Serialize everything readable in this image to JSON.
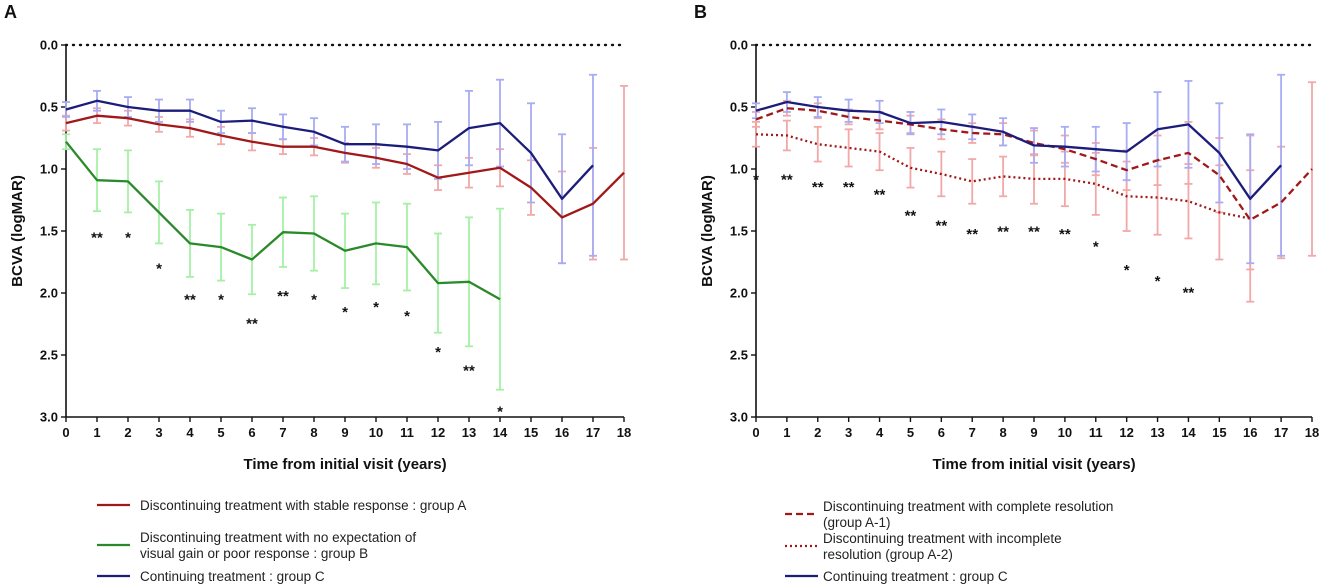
{
  "chart_data": [
    {
      "panel_label": "A",
      "type": "line",
      "xlabel": "Time from initial visit (years)",
      "ylabel": "BCVA (logMAR)",
      "ylim": [
        0.0,
        3.0
      ],
      "y_inverted": true,
      "x_ticks": [
        0,
        1,
        2,
        3,
        4,
        5,
        6,
        7,
        8,
        9,
        10,
        11,
        12,
        13,
        14,
        15,
        16,
        17,
        18
      ],
      "y_ticks": [
        "0.0",
        "0.5",
        "1.0",
        "1.5",
        "2.0",
        "2.5",
        "3.0"
      ],
      "reference_line": {
        "y": 0.0,
        "style": "dotted"
      },
      "series": [
        {
          "name": "Discontinuing treatment with stable response : group A",
          "color": "#a01818",
          "error_color": "#f2a8a8",
          "dash": "solid",
          "x": [
            0,
            1,
            2,
            3,
            4,
            5,
            6,
            7,
            8,
            9,
            10,
            11,
            12,
            13,
            14,
            15,
            16,
            17,
            18
          ],
          "y": [
            0.63,
            0.57,
            0.59,
            0.64,
            0.67,
            0.73,
            0.78,
            0.82,
            0.82,
            0.87,
            0.91,
            0.96,
            1.07,
            1.03,
            0.99,
            1.15,
            1.39,
            1.28,
            1.03
          ],
          "err": [
            0.06,
            0.06,
            0.06,
            0.06,
            0.07,
            0.07,
            0.07,
            0.06,
            0.07,
            0.08,
            0.08,
            0.08,
            0.1,
            0.12,
            0.15,
            0.22,
            0.37,
            0.45,
            0.7
          ]
        },
        {
          "name": "Discontinuing treatment with no expectation of visual gain or poor response : group B",
          "color": "#2a8a2a",
          "error_color": "#a6f0a6",
          "dash": "solid",
          "x": [
            0,
            1,
            2,
            3,
            4,
            5,
            6,
            7,
            8,
            9,
            10,
            11,
            12,
            13,
            14
          ],
          "y": [
            0.78,
            1.09,
            1.1,
            1.35,
            1.6,
            1.63,
            1.73,
            1.51,
            1.52,
            1.66,
            1.6,
            1.63,
            1.92,
            1.91,
            2.05
          ],
          "err": [
            0.06,
            0.25,
            0.25,
            0.25,
            0.27,
            0.27,
            0.28,
            0.28,
            0.3,
            0.3,
            0.33,
            0.35,
            0.4,
            0.52,
            0.73
          ]
        },
        {
          "name": "Continuing treatment : group C",
          "color": "#1c1c7a",
          "error_color": "#a8acf4",
          "dash": "solid",
          "x": [
            0,
            1,
            2,
            3,
            4,
            5,
            6,
            7,
            8,
            9,
            10,
            11,
            12,
            13,
            14,
            15,
            16,
            17
          ],
          "y": [
            0.52,
            0.45,
            0.5,
            0.53,
            0.53,
            0.62,
            0.61,
            0.66,
            0.7,
            0.8,
            0.8,
            0.82,
            0.85,
            0.67,
            0.63,
            0.87,
            1.24,
            0.97
          ],
          "err": [
            0.06,
            0.08,
            0.08,
            0.09,
            0.09,
            0.09,
            0.1,
            0.1,
            0.11,
            0.14,
            0.16,
            0.18,
            0.23,
            0.3,
            0.35,
            0.4,
            0.52,
            0.73
          ]
        }
      ],
      "annotations": [
        {
          "x": 1,
          "y": 1.53,
          "text": "**"
        },
        {
          "x": 2,
          "y": 1.53,
          "text": "*"
        },
        {
          "x": 3,
          "y": 1.78,
          "text": "*"
        },
        {
          "x": 4,
          "y": 2.03,
          "text": "**"
        },
        {
          "x": 5,
          "y": 2.03,
          "text": "*"
        },
        {
          "x": 6,
          "y": 2.22,
          "text": "**"
        },
        {
          "x": 7,
          "y": 2.0,
          "text": "**"
        },
        {
          "x": 8,
          "y": 2.03,
          "text": "*"
        },
        {
          "x": 9,
          "y": 2.13,
          "text": "*"
        },
        {
          "x": 10,
          "y": 2.09,
          "text": "*"
        },
        {
          "x": 11,
          "y": 2.16,
          "text": "*"
        },
        {
          "x": 12,
          "y": 2.45,
          "text": "*"
        },
        {
          "x": 13,
          "y": 2.6,
          "text": "**"
        },
        {
          "x": 14,
          "y": 2.93,
          "text": "*"
        }
      ]
    },
    {
      "panel_label": "B",
      "type": "line",
      "xlabel": "Time from initial visit (years)",
      "ylabel": "BCVA (logMAR)",
      "ylim": [
        0.0,
        3.0
      ],
      "y_inverted": true,
      "x_ticks": [
        0,
        1,
        2,
        3,
        4,
        5,
        6,
        7,
        8,
        9,
        10,
        11,
        12,
        13,
        14,
        15,
        16,
        17,
        18
      ],
      "y_ticks": [
        "0.0",
        "0.5",
        "1.0",
        "1.5",
        "2.0",
        "2.5",
        "3.0"
      ],
      "reference_line": {
        "y": 0.0,
        "style": "dotted"
      },
      "series": [
        {
          "name": "Discontinuing treatment with complete resolution (group A-1)",
          "color": "#a01818",
          "error_color": "#f2a8a8",
          "dash": "dashed",
          "x": [
            0,
            1,
            2,
            3,
            4,
            5,
            6,
            7,
            8,
            9,
            10,
            11,
            12,
            13,
            14,
            15,
            16,
            17,
            18
          ],
          "y": [
            0.6,
            0.51,
            0.53,
            0.58,
            0.61,
            0.64,
            0.68,
            0.71,
            0.72,
            0.79,
            0.84,
            0.92,
            1.01,
            0.93,
            0.87,
            1.05,
            1.41,
            1.27,
            1.0
          ],
          "err": [
            0.06,
            0.06,
            0.06,
            0.06,
            0.07,
            0.07,
            0.08,
            0.08,
            0.09,
            0.1,
            0.11,
            0.13,
            0.16,
            0.2,
            0.25,
            0.3,
            0.4,
            0.45,
            0.7
          ]
        },
        {
          "name": "Discontinuing treatment with incomplete resolution (group A-2)",
          "color": "#a01818",
          "error_color": "#f2a8a8",
          "dash": "dotted",
          "x": [
            0,
            1,
            2,
            3,
            4,
            5,
            6,
            7,
            8,
            9,
            10,
            11,
            12,
            13,
            14,
            15,
            16
          ],
          "y": [
            0.72,
            0.73,
            0.8,
            0.83,
            0.86,
            0.99,
            1.04,
            1.1,
            1.06,
            1.08,
            1.08,
            1.12,
            1.22,
            1.23,
            1.26,
            1.35,
            1.4
          ],
          "err": [
            0.1,
            0.12,
            0.14,
            0.15,
            0.15,
            0.16,
            0.18,
            0.18,
            0.16,
            0.2,
            0.22,
            0.25,
            0.28,
            0.3,
            0.3,
            0.38,
            0.67
          ]
        },
        {
          "name": "Continuing treatment : group C",
          "color": "#1c1c7a",
          "error_color": "#a8acf4",
          "dash": "solid",
          "x": [
            0,
            1,
            2,
            3,
            4,
            5,
            6,
            7,
            8,
            9,
            10,
            11,
            12,
            13,
            14,
            15,
            16,
            17
          ],
          "y": [
            0.53,
            0.46,
            0.5,
            0.53,
            0.54,
            0.63,
            0.62,
            0.66,
            0.7,
            0.81,
            0.82,
            0.84,
            0.86,
            0.68,
            0.64,
            0.87,
            1.24,
            0.97
          ],
          "err": [
            0.06,
            0.08,
            0.08,
            0.09,
            0.09,
            0.09,
            0.1,
            0.1,
            0.11,
            0.14,
            0.16,
            0.18,
            0.23,
            0.3,
            0.35,
            0.4,
            0.52,
            0.73
          ]
        }
      ],
      "annotations": [
        {
          "x": 0,
          "y": 1.06,
          "text": "*"
        },
        {
          "x": 1,
          "y": 1.06,
          "text": "**"
        },
        {
          "x": 2,
          "y": 1.12,
          "text": "**"
        },
        {
          "x": 3,
          "y": 1.12,
          "text": "**"
        },
        {
          "x": 4,
          "y": 1.18,
          "text": "**"
        },
        {
          "x": 5,
          "y": 1.35,
          "text": "**"
        },
        {
          "x": 6,
          "y": 1.43,
          "text": "**"
        },
        {
          "x": 7,
          "y": 1.5,
          "text": "**"
        },
        {
          "x": 8,
          "y": 1.48,
          "text": "**"
        },
        {
          "x": 9,
          "y": 1.48,
          "text": "**"
        },
        {
          "x": 10,
          "y": 1.5,
          "text": "**"
        },
        {
          "x": 11,
          "y": 1.6,
          "text": "*"
        },
        {
          "x": 12,
          "y": 1.79,
          "text": "*"
        },
        {
          "x": 13,
          "y": 1.88,
          "text": "*"
        },
        {
          "x": 14,
          "y": 1.97,
          "text": "**"
        }
      ]
    }
  ],
  "legends": [
    {
      "items": [
        {
          "lines": [
            "Discontinuing treatment with stable response : group A"
          ],
          "color": "#a01818",
          "dash": "solid"
        },
        {
          "lines": [
            "Discontinuing treatment with no expectation of",
            "visual gain or poor response : group B"
          ],
          "color": "#2a8a2a",
          "dash": "solid"
        },
        {
          "lines": [
            "Continuing treatment : group C"
          ],
          "color": "#1c1c7a",
          "dash": "solid"
        }
      ]
    },
    {
      "items": [
        {
          "lines": [
            "Discontinuing treatment with complete resolution",
            "(group A-1)"
          ],
          "color": "#a01818",
          "dash": "dashed"
        },
        {
          "lines": [
            "Discontinuing treatment with incomplete",
            "resolution (group A-2)"
          ],
          "color": "#a01818",
          "dash": "dotted"
        },
        {
          "lines": [
            "Continuing treatment : group C"
          ],
          "color": "#1c1c7a",
          "dash": "solid"
        }
      ]
    }
  ]
}
